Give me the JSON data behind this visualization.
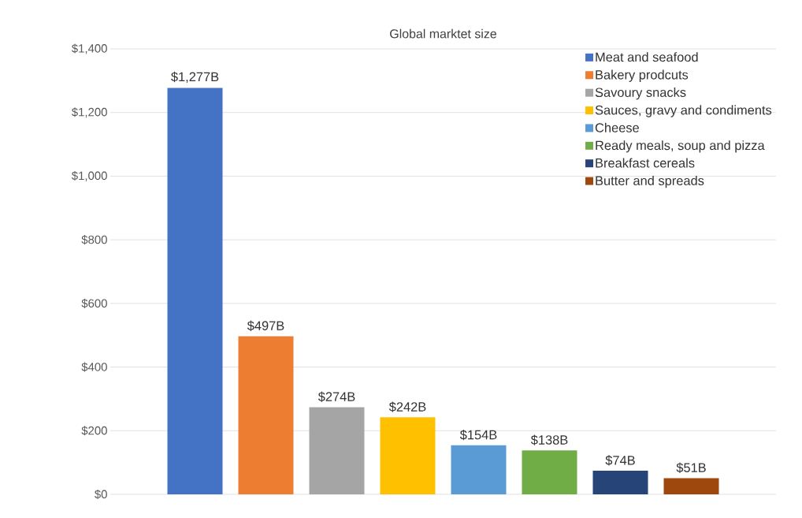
{
  "chart_data": {
    "type": "bar",
    "title": "Global marktet size",
    "categories": [
      null
    ],
    "series": [
      {
        "name": "Meat and seafood",
        "color": "#4472c4",
        "values": [
          1277
        ],
        "value_labels": [
          "$1,277B"
        ]
      },
      {
        "name": "Bakery prodcuts",
        "color": "#ed7d31",
        "values": [
          497
        ],
        "value_labels": [
          "$497B"
        ]
      },
      {
        "name": "Savoury snacks",
        "color": "#a5a5a5",
        "values": [
          274
        ],
        "value_labels": [
          "$274B"
        ]
      },
      {
        "name": "Sauces, gravy and condiments",
        "color": "#ffc000",
        "values": [
          242
        ],
        "value_labels": [
          "$242B"
        ]
      },
      {
        "name": "Cheese",
        "color": "#5b9bd5",
        "values": [
          154
        ],
        "value_labels": [
          "$154B"
        ]
      },
      {
        "name": "Ready meals, soup and pizza",
        "color": "#70ad47",
        "values": [
          138
        ],
        "value_labels": [
          "$138B"
        ]
      },
      {
        "name": "Breakfast cereals",
        "color": "#264478",
        "values": [
          74
        ],
        "value_labels": [
          "$74B"
        ]
      },
      {
        "name": "Butter and spreads",
        "color": "#9e480e",
        "values": [
          51
        ],
        "value_labels": [
          "$51B"
        ]
      }
    ],
    "ylim": [
      0,
      1400
    ],
    "yticks": [
      {
        "value": 0,
        "label": "$0"
      },
      {
        "value": 200,
        "label": "$200"
      },
      {
        "value": 400,
        "label": "$400"
      },
      {
        "value": 600,
        "label": "$600"
      },
      {
        "value": 800,
        "label": "$800"
      },
      {
        "value": 1000,
        "label": "$1,000"
      },
      {
        "value": 1200,
        "label": "$1,200"
      },
      {
        "value": 1400,
        "label": "$1,400"
      }
    ],
    "grid": "y",
    "legend": "top right"
  }
}
